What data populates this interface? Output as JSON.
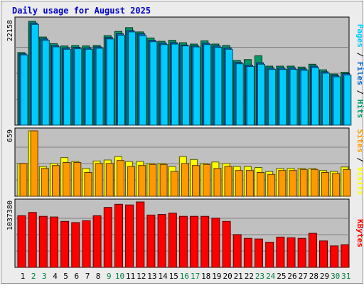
{
  "chart_data": {
    "type": "bar",
    "title": "Daily usage for August 2025",
    "colors": {
      "background": "#ececec",
      "plot_background": "#c0c0c0",
      "grid": "#808080",
      "title_text": "#0000cc",
      "hits": "#009966",
      "files": "#0066cc",
      "pages": "#00ccff",
      "visits": "#ffff00",
      "sites": "#ff9900",
      "kbytes": "#ff0000",
      "weekend_label": "#008040",
      "weekday_label": "#000000"
    },
    "days": [
      "1",
      "2",
      "3",
      "4",
      "5",
      "6",
      "7",
      "8",
      "9",
      "10",
      "11",
      "12",
      "13",
      "14",
      "15",
      "16",
      "17",
      "18",
      "19",
      "20",
      "21",
      "22",
      "23",
      "24",
      "25",
      "26",
      "27",
      "28",
      "29",
      "30",
      "31"
    ],
    "weekend_days": [
      "2",
      "3",
      "9",
      "10",
      "16",
      "17",
      "23",
      "24",
      "30",
      "31"
    ],
    "panels": [
      {
        "key": "hits_files_pages",
        "max_label": "22158",
        "max_value": 22158,
        "ylabel_parts": [
          {
            "text": "Pages",
            "color": "#00ccff"
          },
          {
            "text": " / ",
            "color": "#000000"
          },
          {
            "text": "Files",
            "color": "#0066cc"
          },
          {
            "text": " / ",
            "color": "#000000"
          },
          {
            "text": "Hits",
            "color": "#009966"
          }
        ],
        "series": [
          {
            "name": "Hits",
            "color": "#009966",
            "values": [
              15500,
              22158,
              18800,
              17400,
              16900,
              17000,
              16900,
              17000,
              19100,
              20000,
              20800,
              19900,
              18600,
              17900,
              18100,
              17600,
              17300,
              18000,
              17300,
              17000,
              13800,
              14000,
              14800,
              12600,
              12600,
              12600,
              12400,
              13000,
              11800,
              10900,
              11300
            ]
          },
          {
            "name": "Files",
            "color": "#0066cc",
            "values": [
              15200,
              21800,
              18400,
              17000,
              16500,
              16600,
              16500,
              16700,
              18700,
              19500,
              20200,
              19500,
              18100,
              17500,
              17600,
              17100,
              16900,
              17500,
              16900,
              16500,
              13400,
              12800,
              13300,
              12200,
              12200,
              12200,
              12000,
              12600,
              11400,
              10600,
              11000
            ]
          },
          {
            "name": "Pages",
            "color": "#00ccff",
            "values": [
              15000,
              21500,
              18100,
              16700,
              16200,
              16300,
              16200,
              16400,
              18400,
              19200,
              19900,
              19100,
              17800,
              17200,
              17300,
              16900,
              16700,
              17200,
              16600,
              16200,
              13100,
              12500,
              13000,
              11900,
              11900,
              11900,
              11700,
              12300,
              11100,
              10300,
              10700
            ]
          }
        ]
      },
      {
        "key": "visits_sites",
        "max_label": "659",
        "max_value": 659,
        "ylabel_parts": [
          {
            "text": "Sites",
            "color": "#ff9900"
          },
          {
            "text": " / ",
            "color": "#000000"
          },
          {
            "text": "Visits",
            "color": "#ffff00"
          }
        ],
        "series": [
          {
            "name": "Visits",
            "color": "#ffff00",
            "values": [
              330,
              659,
              300,
              330,
              390,
              350,
              280,
              355,
              365,
              400,
              350,
              350,
              330,
              330,
              300,
              400,
              370,
              330,
              345,
              330,
              300,
              300,
              290,
              250,
              280,
              280,
              280,
              280,
              260,
              250,
              295
            ]
          },
          {
            "name": "Sites",
            "color": "#ff9900",
            "values": [
              330,
              659,
              280,
              310,
              340,
              340,
              240,
              330,
              330,
              360,
              300,
              310,
              320,
              320,
              250,
              330,
              310,
              320,
              280,
              300,
              260,
              260,
              240,
              220,
              260,
              260,
              270,
              270,
              240,
              230,
              270
            ]
          }
        ]
      },
      {
        "key": "kbytes",
        "max_label": "1037380",
        "max_value": 1037380,
        "ylabel_parts": [
          {
            "text": "KBytes",
            "color": "#ff0000"
          }
        ],
        "series": [
          {
            "name": "KBytes",
            "color": "#ff0000",
            "values": [
              820000,
              870000,
              810000,
              800000,
              730000,
              710000,
              740000,
              820000,
              950000,
              1000000,
              990000,
              1037380,
              830000,
              840000,
              860000,
              810000,
              810000,
              810000,
              780000,
              730000,
              520000,
              460000,
              450000,
              400000,
              480000,
              470000,
              460000,
              540000,
              420000,
              340000,
              360000
            ]
          }
        ]
      }
    ]
  }
}
